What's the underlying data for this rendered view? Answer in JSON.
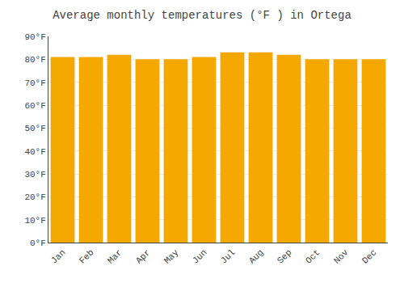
{
  "chart_data": {
    "type": "bar",
    "title": "Average monthly temperatures (°F ) in Ortega",
    "categories": [
      "Jan",
      "Feb",
      "Mar",
      "Apr",
      "May",
      "Jun",
      "Jul",
      "Aug",
      "Sep",
      "Oct",
      "Nov",
      "Dec"
    ],
    "values": [
      81,
      81,
      82,
      80,
      80,
      81,
      83,
      83,
      82,
      80,
      80,
      80
    ],
    "color": "#F5A800",
    "ylim": [
      0,
      90
    ],
    "yticks": [
      {
        "value": 0,
        "label": "0°F"
      },
      {
        "value": 10,
        "label": "10°F"
      },
      {
        "value": 20,
        "label": "20°F"
      },
      {
        "value": 30,
        "label": "30°F"
      },
      {
        "value": 40,
        "label": "40°F"
      },
      {
        "value": 50,
        "label": "50°F"
      },
      {
        "value": 60,
        "label": "60°F"
      },
      {
        "value": 70,
        "label": "70°F"
      },
      {
        "value": 80,
        "label": "80°F"
      },
      {
        "value": 90,
        "label": "90°F"
      }
    ],
    "grid": true
  }
}
